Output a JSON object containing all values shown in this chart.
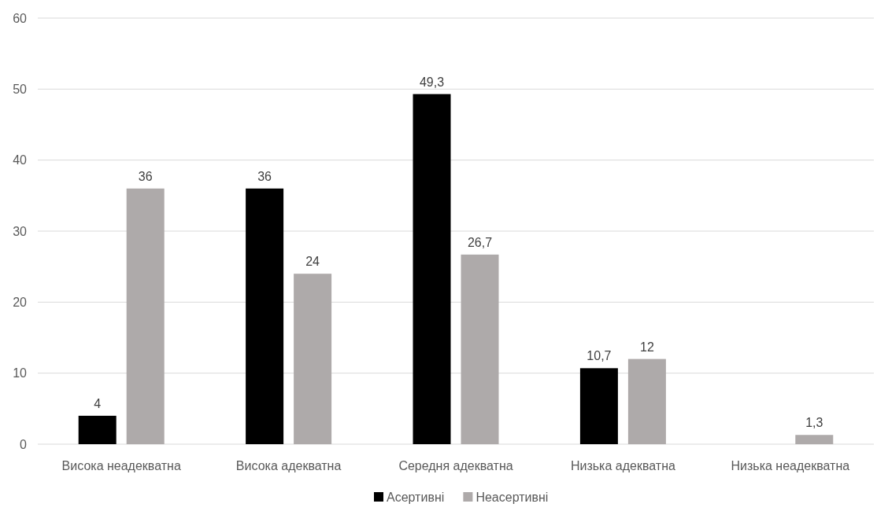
{
  "chart_data": {
    "type": "bar",
    "categories": [
      "Висока неадекватна",
      "Висока адекватна",
      "Середня адекватна",
      "Низька адекватна",
      "Низька неадекватна"
    ],
    "series": [
      {
        "name": "Асертивні",
        "color": "#000000",
        "values": [
          4,
          36,
          49.3,
          10.7,
          null
        ],
        "value_labels": [
          "4",
          "36",
          "49,3",
          "10,7",
          null
        ]
      },
      {
        "name": "Неасертивні",
        "color": "#aeaaaa",
        "values": [
          36,
          24,
          26.7,
          12,
          1.3
        ],
        "value_labels": [
          "36",
          "24",
          "26,7",
          "12",
          "1,3"
        ]
      }
    ],
    "ylim": [
      0,
      60
    ],
    "yticks": [
      0,
      10,
      20,
      30,
      40,
      50,
      60
    ],
    "grid": "y",
    "legend": "bottom"
  }
}
